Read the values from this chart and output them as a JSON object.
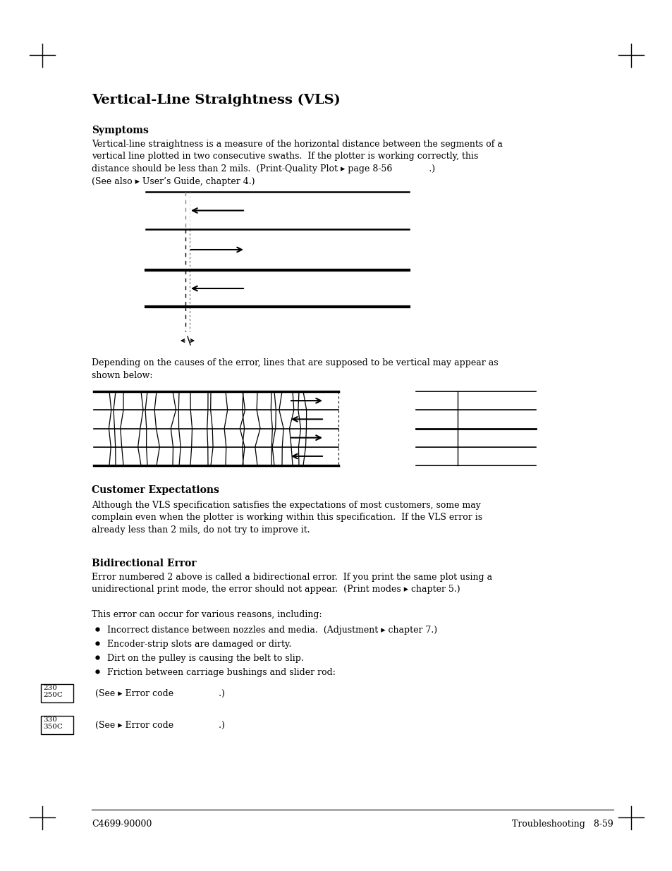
{
  "title": "Vertical-Line Straightness (VLS)",
  "bg_color": "#ffffff",
  "sections": {
    "title": "Vertical-Line Straightness (VLS)",
    "symptoms_header": "Symptoms",
    "symptoms_body": "Vertical-line straightness is a measure of the horizontal distance between the segments of a\nvertical line plotted in two consecutive swaths.  If the plotter is working correctly, this\ndistance should be less than 2 mils.  (Print-Quality Plot ▸ page 8-56             .)\n(See also ▸ User’s Guide, chapter 4.)",
    "depending_text": "Depending on the causes of the error, lines that are supposed to be vertical may appear as\nshown below:",
    "customer_exp_header": "Customer Expectations",
    "customer_exp_body": "Although the VLS specification satisfies the expectations of most customers, some may\ncomplain even when the plotter is working within this specification.  If the VLS error is\nalready less than 2 mils, do not try to improve it.",
    "bidir_header": "Bidirectional Error",
    "bidir_body1": "Error numbered 2 above is called a bidirectional error.  If you print the same plot using a\nunidirectional print mode, the error should not appear.  (Print modes ▸ chapter 5.)",
    "bidir_body2": "This error can occur for various reasons, including:",
    "bullets": [
      "Incorrect distance between nozzles and media.  (Adjustment ▸ chapter 7.)",
      "Encoder-strip slots are damaged or dirty.",
      "Dirt on the pulley is causing the belt to slip.",
      "Friction between carriage bushings and slider rod:"
    ],
    "box1_text": "230\n250C",
    "box1_line": "(See ▸ Error code                .)",
    "box2_text": "330\n350C",
    "box2_line": "(See ▸ Error code                .)",
    "footer_left": "C4699-90000",
    "footer_right": "Troubleshooting   8-59"
  }
}
